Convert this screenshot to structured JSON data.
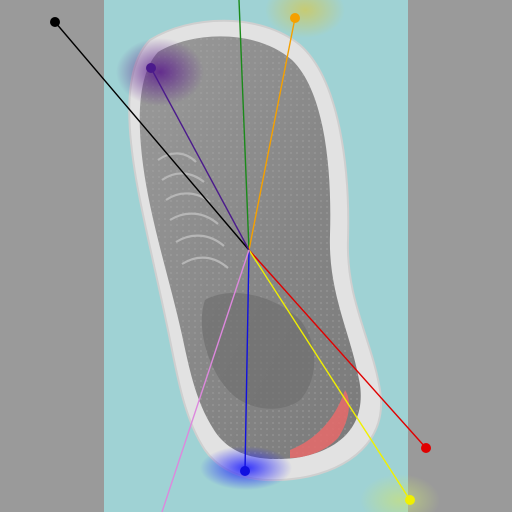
{
  "colors": {
    "side_margin": "#9a9a9a",
    "backdrop": "#9fd2d4",
    "shoe_upper": "#8a8a8a",
    "shoe_upper_dark": "#6f6f6f",
    "sole": "#e4e4e4",
    "heel_accent": "#e86a6a",
    "hub": "#4a4a4a"
  },
  "keypoints": [
    {
      "id": "black",
      "color": "#000000",
      "marker": true
    },
    {
      "id": "green",
      "color": "#1a8a1a",
      "marker": false
    },
    {
      "id": "orange",
      "color": "#f5a000",
      "marker": true
    },
    {
      "id": "purple",
      "color": "#4b1a8c",
      "marker": true
    },
    {
      "id": "red",
      "color": "#e00000",
      "marker": true
    },
    {
      "id": "yellow",
      "color": "#f0f000",
      "marker": true
    },
    {
      "id": "blue",
      "color": "#1010e0",
      "marker": true
    },
    {
      "id": "pink",
      "color": "#dd88dd",
      "marker": false
    }
  ],
  "heatspots": [
    {
      "id": "purple-glow",
      "color": "#5a1a8c"
    },
    {
      "id": "blue-glow",
      "color": "#2020ff"
    },
    {
      "id": "orange-glow",
      "color": "#d7c84a"
    },
    {
      "id": "yellow-glow",
      "color": "#c8e07a"
    }
  ]
}
